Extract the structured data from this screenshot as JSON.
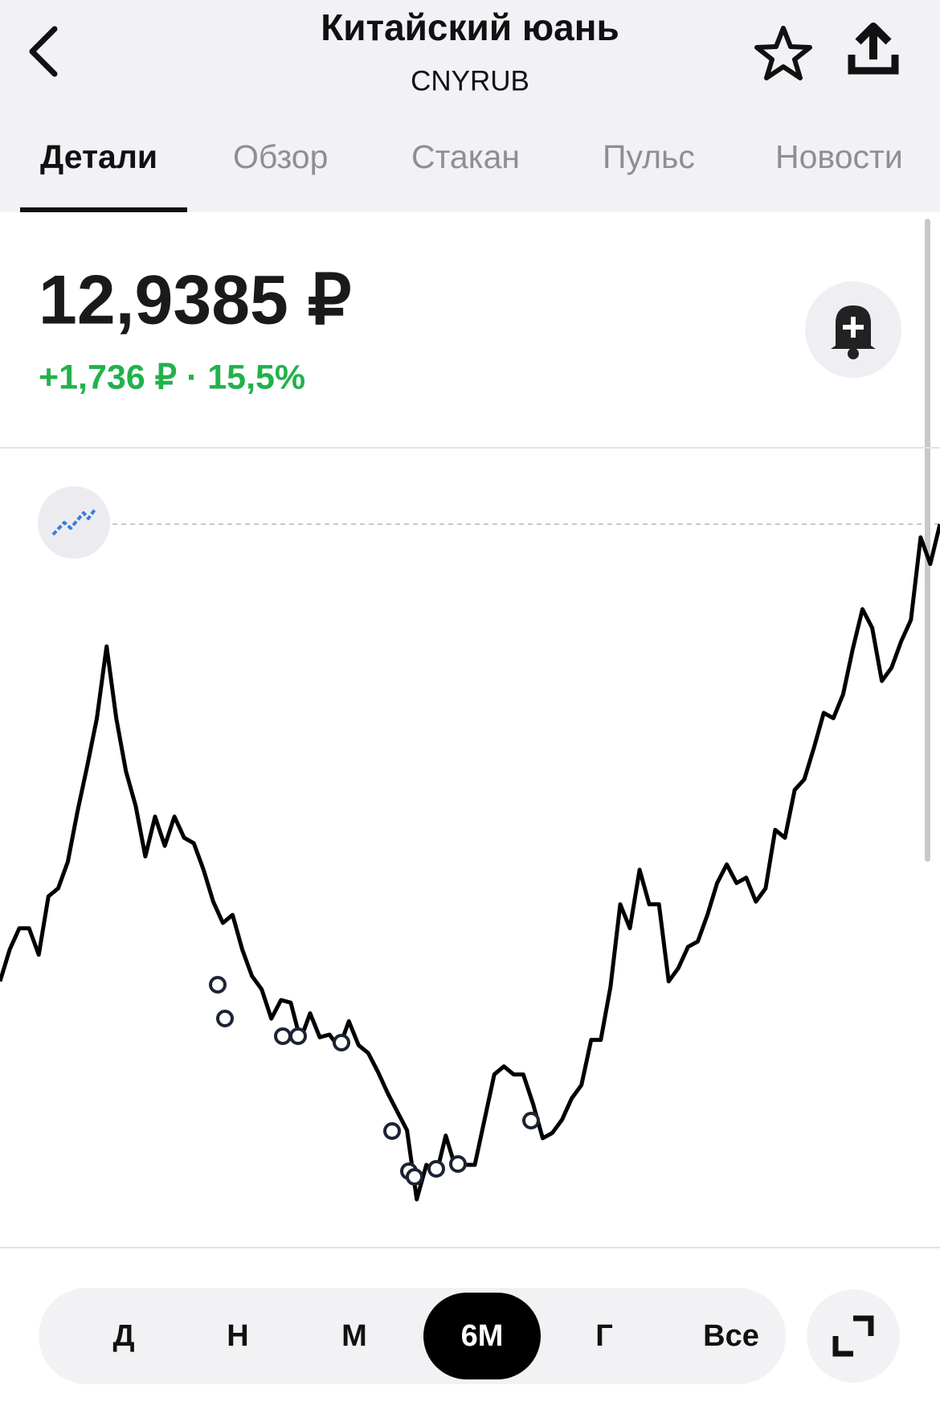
{
  "header": {
    "title": "Китайский юань",
    "subtitle": "CNYRUB"
  },
  "tabs": [
    "Детали",
    "Обзор",
    "Стакан",
    "Пульс",
    "Новости"
  ],
  "active_tab": 0,
  "price": {
    "value": "12,9385 ₽",
    "change": "+1,736 ₽ · 15,5%"
  },
  "chart_data": {
    "type": "line",
    "color": "#000000",
    "values": [
      11.22,
      11.34,
      11.42,
      11.42,
      11.32,
      11.54,
      11.57,
      11.67,
      11.86,
      12.03,
      12.21,
      12.48,
      12.21,
      12.01,
      11.88,
      11.69,
      11.84,
      11.73,
      11.84,
      11.76,
      11.74,
      11.64,
      11.52,
      11.44,
      11.47,
      11.34,
      11.24,
      11.19,
      11.08,
      11.15,
      11.14,
      11.0,
      11.1,
      11.01,
      11.02,
      10.97,
      11.07,
      10.98,
      10.95,
      10.88,
      10.8,
      10.73,
      10.66,
      10.4,
      10.53,
      10.49,
      10.64,
      10.52,
      10.53,
      10.53,
      10.7,
      10.87,
      10.9,
      10.87,
      10.87,
      10.76,
      10.63,
      10.65,
      10.7,
      10.78,
      10.83,
      11.0,
      11.0,
      11.2,
      11.51,
      11.42,
      11.64,
      11.51,
      11.51,
      11.22,
      11.27,
      11.35,
      11.37,
      11.47,
      11.59,
      11.66,
      11.59,
      11.61,
      11.52,
      11.57,
      11.79,
      11.76,
      11.94,
      11.98,
      12.1,
      12.23,
      12.21,
      12.3,
      12.47,
      12.62,
      12.55,
      12.35,
      12.4,
      12.5,
      12.58,
      12.89,
      12.79,
      12.94
    ]
  },
  "periods": [
    "Д",
    "Н",
    "М",
    "6М",
    "Г",
    "Все"
  ],
  "active_period": 3
}
